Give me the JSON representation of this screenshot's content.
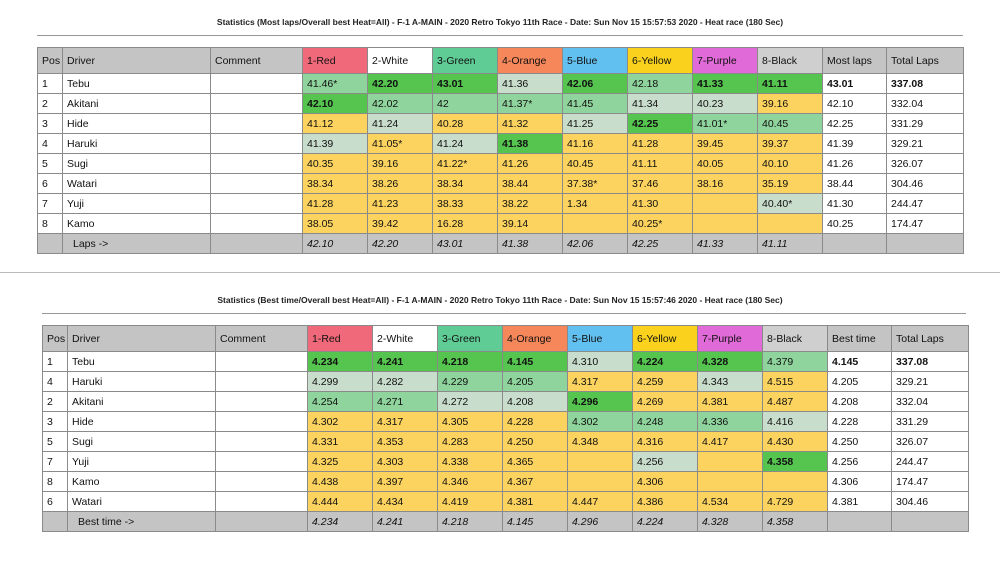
{
  "colors": {
    "D": "#55c54f",
    "M": "#8fd49c",
    "L": "#c8ddcb",
    "Y": "#fcd35e"
  },
  "top": {
    "title": "Statistics (Most laps/Overall best Heat=All) - F-1 A-MAIN - 2020 Retro Tokyo 11th Race - Date: Sun Nov 15 15:57:53 2020 - Heat race (180 Sec)",
    "headers": [
      "Pos",
      "Driver",
      "Comment",
      "1-Red",
      "2-White",
      "3-Green",
      "4-Orange",
      "5-Blue",
      "6-Yellow",
      "7-Purple",
      "8-Black",
      "Most laps",
      "Total Laps"
    ],
    "rows": [
      {
        "pos": "1",
        "driver": "Tebu",
        "comment": "",
        "laps": [
          "41.46*",
          "42.20",
          "43.01",
          "41.36",
          "42.06",
          "42.18",
          "41.33",
          "41.11"
        ],
        "shade": [
          "M",
          "D",
          "D",
          "L",
          "D",
          "M",
          "D",
          "D"
        ],
        "best": "43.01",
        "total": "337.08",
        "bold": true
      },
      {
        "pos": "2",
        "driver": "Akitani",
        "comment": "",
        "laps": [
          "42.10",
          "42.02",
          "42",
          "41.37*",
          "41.45",
          "41.34",
          "40.23",
          "39.16"
        ],
        "shade": [
          "D",
          "M",
          "M",
          "M",
          "M",
          "L",
          "L",
          "Y"
        ],
        "best": "42.10",
        "total": "332.04"
      },
      {
        "pos": "3",
        "driver": "Hide",
        "comment": "",
        "laps": [
          "41.12",
          "41.24",
          "40.28",
          "41.32",
          "41.25",
          "42.25",
          "41.01*",
          "40.45"
        ],
        "shade": [
          "Y",
          "L",
          "Y",
          "Y",
          "L",
          "D",
          "M",
          "M"
        ],
        "best": "42.25",
        "total": "331.29"
      },
      {
        "pos": "4",
        "driver": "Haruki",
        "comment": "",
        "laps": [
          "41.39",
          "41.05*",
          "41.24",
          "41.38",
          "41.16",
          "41.28",
          "39.45",
          "39.37"
        ],
        "shade": [
          "L",
          "Y",
          "L",
          "D",
          "Y",
          "Y",
          "Y",
          "Y"
        ],
        "best": "41.39",
        "total": "329.21"
      },
      {
        "pos": "5",
        "driver": "Sugi",
        "comment": "",
        "laps": [
          "40.35",
          "39.16",
          "41.22*",
          "41.26",
          "40.45",
          "41.11",
          "40.05",
          "40.10"
        ],
        "shade": [
          "Y",
          "Y",
          "Y",
          "Y",
          "Y",
          "Y",
          "Y",
          "Y"
        ],
        "best": "41.26",
        "total": "326.07"
      },
      {
        "pos": "6",
        "driver": "Watari",
        "comment": "",
        "laps": [
          "38.34",
          "38.26",
          "38.34",
          "38.44",
          "37.38*",
          "37.46",
          "38.16",
          "35.19"
        ],
        "shade": [
          "Y",
          "Y",
          "Y",
          "Y",
          "Y",
          "Y",
          "Y",
          "Y"
        ],
        "best": "38.44",
        "total": "304.46"
      },
      {
        "pos": "7",
        "driver": "Yuji",
        "comment": "",
        "laps": [
          "41.28",
          "41.23",
          "38.33",
          "38.22",
          "1.34",
          "41.30",
          "",
          ""
        ],
        "shade": [
          "Y",
          "Y",
          "Y",
          "Y",
          "Y",
          "Y",
          "Y",
          "L"
        ],
        "best": "41.30",
        "total": "244.47",
        "fix": {
          "7": "40.40*"
        }
      },
      {
        "pos": "8",
        "driver": "Kamo",
        "comment": "",
        "laps": [
          "38.05",
          "39.42",
          "16.28",
          "39.14",
          "",
          "40.25*",
          "",
          ""
        ],
        "shade": [
          "Y",
          "Y",
          "Y",
          "Y",
          "Y",
          "Y",
          "Y",
          "Y"
        ],
        "best": "40.25",
        "total": "174.47"
      }
    ],
    "footer": {
      "label": "Laps ->",
      "values": [
        "42.10",
        "42.20",
        "43.01",
        "41.38",
        "42.06",
        "42.25",
        "41.33",
        "41.11"
      ]
    }
  },
  "bottom": {
    "title": "Statistics (Best time/Overall best Heat=All) - F-1 A-MAIN - 2020 Retro Tokyo 11th Race - Date: Sun Nov 15 15:57:46 2020 - Heat race (180 Sec)",
    "headers": [
      "Pos",
      "Driver",
      "Comment",
      "1-Red",
      "2-White",
      "3-Green",
      "4-Orange",
      "5-Blue",
      "6-Yellow",
      "7-Purple",
      "8-Black",
      "Best time",
      "Total Laps"
    ],
    "rows": [
      {
        "pos": "1",
        "driver": "Tebu",
        "comment": "",
        "laps": [
          "4.234",
          "4.241",
          "4.218",
          "4.145",
          "4.310",
          "4.224",
          "4.328",
          "4.379"
        ],
        "shade": [
          "D",
          "D",
          "D",
          "D",
          "L",
          "D",
          "D",
          "M"
        ],
        "best": "4.145",
        "total": "337.08",
        "bold": true
      },
      {
        "pos": "4",
        "driver": "Haruki",
        "comment": "",
        "laps": [
          "4.299",
          "4.282",
          "4.229",
          "4.205",
          "4.317",
          "4.259",
          "4.343",
          "4.515"
        ],
        "shade": [
          "L",
          "L",
          "M",
          "M",
          "Y",
          "Y",
          "L",
          "Y"
        ],
        "best": "4.205",
        "total": "329.21"
      },
      {
        "pos": "2",
        "driver": "Akitani",
        "comment": "",
        "laps": [
          "4.254",
          "4.271",
          "4.272",
          "4.208",
          "4.296",
          "4.269",
          "4.381",
          "4.487"
        ],
        "shade": [
          "M",
          "M",
          "L",
          "L",
          "D",
          "Y",
          "Y",
          "Y"
        ],
        "best": "4.208",
        "total": "332.04"
      },
      {
        "pos": "3",
        "driver": "Hide",
        "comment": "",
        "laps": [
          "4.302",
          "4.317",
          "4.305",
          "4.228",
          "4.302",
          "4.248",
          "4.336",
          "4.416"
        ],
        "shade": [
          "Y",
          "Y",
          "Y",
          "Y",
          "M",
          "M",
          "M",
          "L"
        ],
        "best": "4.228",
        "total": "331.29"
      },
      {
        "pos": "5",
        "driver": "Sugi",
        "comment": "",
        "laps": [
          "4.331",
          "4.353",
          "4.283",
          "4.250",
          "4.348",
          "4.316",
          "4.417",
          "4.430"
        ],
        "shade": [
          "Y",
          "Y",
          "Y",
          "Y",
          "Y",
          "Y",
          "Y",
          "Y"
        ],
        "best": "4.250",
        "total": "326.07"
      },
      {
        "pos": "7",
        "driver": "Yuji",
        "comment": "",
        "laps": [
          "4.325",
          "4.303",
          "4.338",
          "4.365",
          "",
          "4.256",
          "",
          "4.358"
        ],
        "shade": [
          "Y",
          "Y",
          "Y",
          "Y",
          "Y",
          "L",
          "Y",
          "D"
        ],
        "best": "4.256",
        "total": "244.47"
      },
      {
        "pos": "8",
        "driver": "Kamo",
        "comment": "",
        "laps": [
          "4.438",
          "4.397",
          "4.346",
          "4.367",
          "",
          "4.306",
          "",
          ""
        ],
        "shade": [
          "Y",
          "Y",
          "Y",
          "Y",
          "Y",
          "Y",
          "Y",
          "Y"
        ],
        "best": "4.306",
        "total": "174.47"
      },
      {
        "pos": "6",
        "driver": "Watari",
        "comment": "",
        "laps": [
          "4.444",
          "4.434",
          "4.419",
          "4.381",
          "4.447",
          "4.386",
          "4.534",
          "4.729"
        ],
        "shade": [
          "Y",
          "Y",
          "Y",
          "Y",
          "Y",
          "Y",
          "Y",
          "Y"
        ],
        "best": "4.381",
        "total": "304.46"
      }
    ],
    "footer": {
      "label": "Best time ->",
      "values": [
        "4.234",
        "4.241",
        "4.218",
        "4.145",
        "4.296",
        "4.224",
        "4.328",
        "4.358"
      ]
    }
  }
}
